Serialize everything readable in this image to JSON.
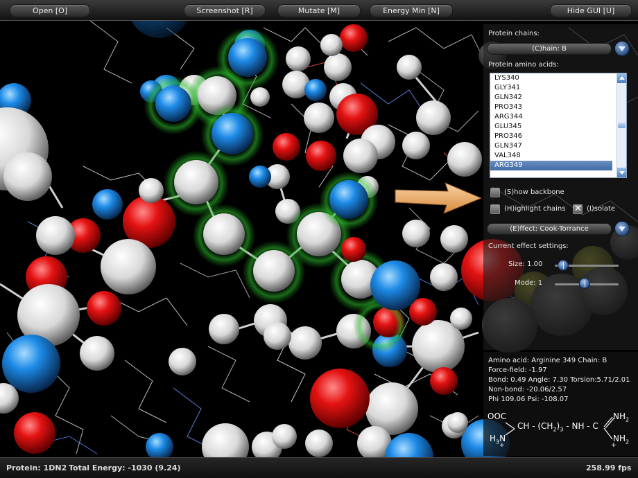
{
  "toolbar": {
    "open": "Open [O]",
    "screenshot": "Screenshot [R]",
    "mutate": "Mutate [M]",
    "energy_min": "Energy Min [N]",
    "hide_gui": "Hide GUI [U]"
  },
  "panel": {
    "chains_label": "Protein chains:",
    "chain_value": "(C)hain: B",
    "amino_label": "Protein amino acids:",
    "amino_acids": [
      "LYS340",
      "GLY341",
      "GLN342",
      "PRO343",
      "ARG344",
      "GLU345",
      "PRO346",
      "GLN347",
      "VAL348",
      "ARG349"
    ],
    "selected_amino_acid": "ARG349",
    "show_backbone": "(S)how backbone",
    "highlight_chains": "(H)ighlight chains",
    "isolate": "(I)solate",
    "effect_value": "(E)ffect: Cook-Torrance",
    "effect_settings_label": "Current effect settings:",
    "size_label": "Size: 1.00",
    "size_value": 1.0,
    "mode_label": "Mode: 1",
    "mode_value": 1
  },
  "info": {
    "line1": "Amino acid: Arginine 349  Chain: B",
    "line2": "Force-field: -1.97",
    "line3": "Bond: 0.49 Angle: 7.30 Torsion:5.71/2.01",
    "line4": "Non-bond: -20.06/2.57",
    "line5": "Phi 109.06 Psi: -108.07",
    "formula": {
      "ooc": "OOC",
      "h3n": "H",
      "h3n_sub": "3",
      "n": "N",
      "plus": "+",
      "ch": "CH - (CH",
      "ch2_sub": "2",
      "ch2_close": ")",
      "ch2_n": "3",
      "nh_c": "- NH - C",
      "nh2": "NH",
      "nh2_sub": "2",
      "nh2b": "NH",
      "nh2b_sub": "2",
      "plus2": "+"
    }
  },
  "status": {
    "protein": "Protein: 1DN2",
    "energy": "Total Energy: -1030 (9.24)",
    "fps": "258.99 fps"
  },
  "colors": {
    "oxygen": "#e01010",
    "nitrogen": "#1e8ee6",
    "carbon": "#f2f2f2",
    "highlight": "#3ad23a",
    "arrow": "#f0a860"
  }
}
